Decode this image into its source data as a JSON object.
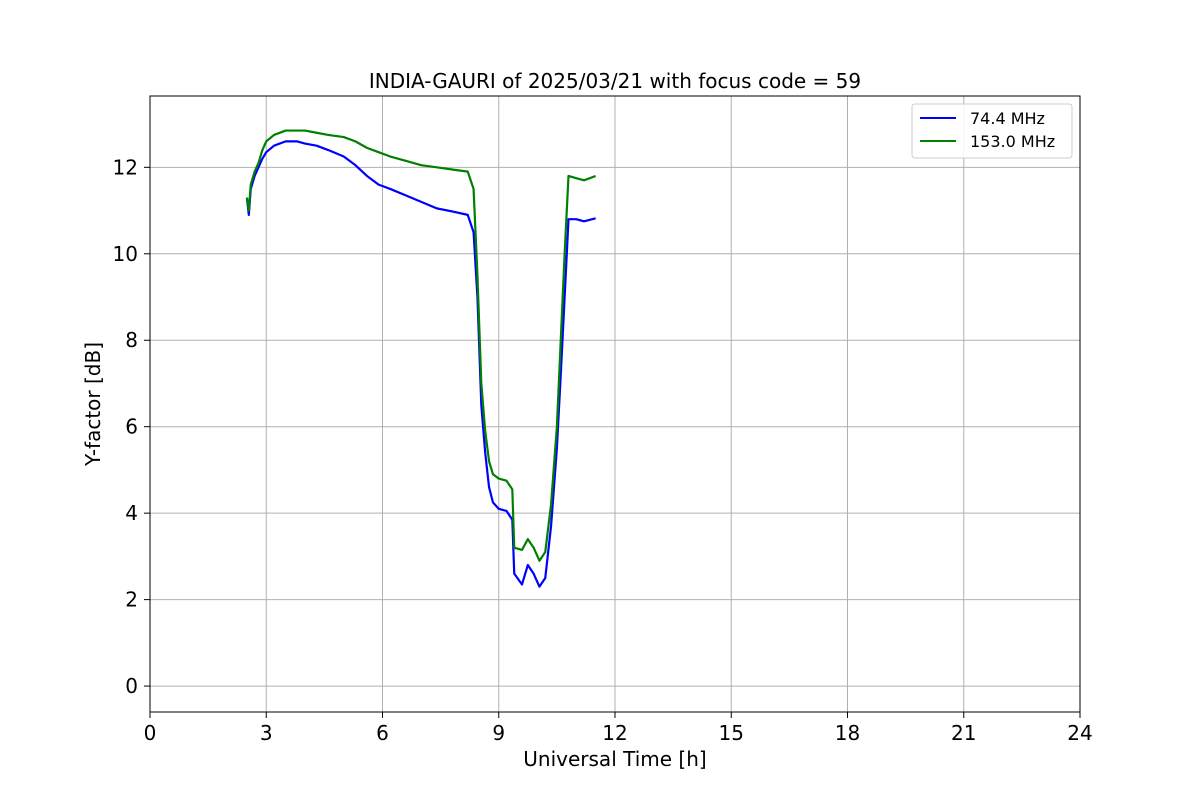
{
  "chart_data": {
    "type": "line",
    "title": "INDIA-GAURI of 2025/03/21 with focus code = 59",
    "xlabel": "Universal Time [h]",
    "ylabel": "Y-factor [dB]",
    "xlim": [
      0,
      24
    ],
    "ylim": [
      -0.6,
      13.65
    ],
    "xticks": [
      0,
      3,
      6,
      9,
      12,
      15,
      18,
      21,
      24
    ],
    "yticks": [
      0,
      2,
      4,
      6,
      8,
      10,
      12
    ],
    "grid": true,
    "legend_position": "top-right",
    "series": [
      {
        "name": "74.4 MHz",
        "color": "#0000ff",
        "points": [
          [
            2.5,
            11.3
          ],
          [
            2.55,
            10.9
          ],
          [
            2.6,
            11.5
          ],
          [
            2.7,
            11.8
          ],
          [
            2.8,
            12.0
          ],
          [
            2.9,
            12.2
          ],
          [
            3.0,
            12.35
          ],
          [
            3.2,
            12.5
          ],
          [
            3.5,
            12.6
          ],
          [
            3.8,
            12.6
          ],
          [
            4.0,
            12.55
          ],
          [
            4.3,
            12.5
          ],
          [
            4.6,
            12.4
          ],
          [
            5.0,
            12.25
          ],
          [
            5.3,
            12.05
          ],
          [
            5.6,
            11.8
          ],
          [
            5.9,
            11.6
          ],
          [
            6.2,
            11.5
          ],
          [
            6.6,
            11.35
          ],
          [
            7.0,
            11.2
          ],
          [
            7.4,
            11.05
          ],
          [
            7.8,
            10.98
          ],
          [
            8.2,
            10.9
          ],
          [
            8.35,
            10.5
          ],
          [
            8.45,
            9.0
          ],
          [
            8.55,
            6.5
          ],
          [
            8.65,
            5.4
          ],
          [
            8.75,
            4.6
          ],
          [
            8.85,
            4.25
          ],
          [
            9.0,
            4.1
          ],
          [
            9.2,
            4.05
          ],
          [
            9.35,
            3.85
          ],
          [
            9.4,
            2.6
          ],
          [
            9.6,
            2.35
          ],
          [
            9.75,
            2.8
          ],
          [
            9.9,
            2.6
          ],
          [
            10.05,
            2.3
          ],
          [
            10.2,
            2.5
          ],
          [
            10.35,
            3.7
          ],
          [
            10.5,
            5.5
          ],
          [
            10.6,
            7.2
          ],
          [
            10.7,
            9.0
          ],
          [
            10.8,
            10.8
          ],
          [
            11.0,
            10.8
          ],
          [
            11.2,
            10.75
          ],
          [
            11.5,
            10.82
          ]
        ]
      },
      {
        "name": "153.0 MHz",
        "color": "#008000",
        "points": [
          [
            2.5,
            11.3
          ],
          [
            2.55,
            11.0
          ],
          [
            2.6,
            11.6
          ],
          [
            2.7,
            11.9
          ],
          [
            2.8,
            12.1
          ],
          [
            2.9,
            12.4
          ],
          [
            3.0,
            12.6
          ],
          [
            3.2,
            12.75
          ],
          [
            3.5,
            12.85
          ],
          [
            3.8,
            12.85
          ],
          [
            4.0,
            12.85
          ],
          [
            4.3,
            12.8
          ],
          [
            4.6,
            12.75
          ],
          [
            5.0,
            12.7
          ],
          [
            5.3,
            12.6
          ],
          [
            5.6,
            12.45
          ],
          [
            5.9,
            12.35
          ],
          [
            6.2,
            12.25
          ],
          [
            6.6,
            12.15
          ],
          [
            7.0,
            12.05
          ],
          [
            7.4,
            12.0
          ],
          [
            7.8,
            11.95
          ],
          [
            8.2,
            11.9
          ],
          [
            8.35,
            11.5
          ],
          [
            8.45,
            9.5
          ],
          [
            8.55,
            7.0
          ],
          [
            8.65,
            5.9
          ],
          [
            8.75,
            5.2
          ],
          [
            8.85,
            4.9
          ],
          [
            9.0,
            4.8
          ],
          [
            9.2,
            4.75
          ],
          [
            9.35,
            4.55
          ],
          [
            9.4,
            3.2
          ],
          [
            9.6,
            3.15
          ],
          [
            9.75,
            3.4
          ],
          [
            9.9,
            3.2
          ],
          [
            10.05,
            2.9
          ],
          [
            10.2,
            3.1
          ],
          [
            10.35,
            4.2
          ],
          [
            10.5,
            6.0
          ],
          [
            10.6,
            8.0
          ],
          [
            10.7,
            10.0
          ],
          [
            10.8,
            11.8
          ],
          [
            11.0,
            11.75
          ],
          [
            11.2,
            11.7
          ],
          [
            11.5,
            11.8
          ]
        ]
      }
    ]
  }
}
